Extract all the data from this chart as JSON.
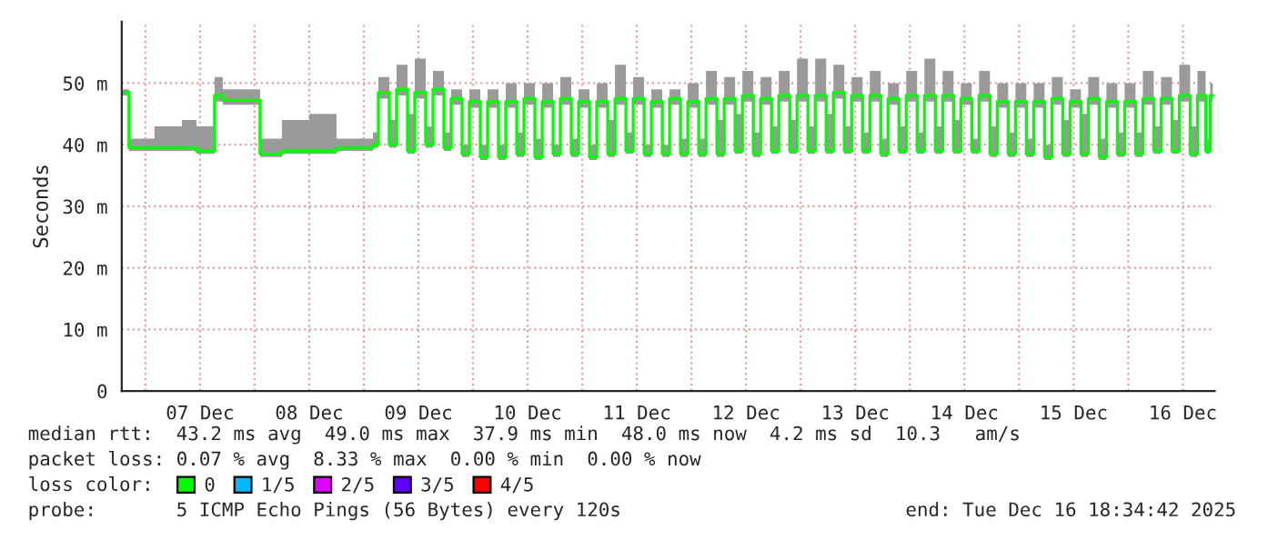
{
  "chart_data": {
    "type": "step",
    "ylabel": "Seconds",
    "xlim": [
      "2025-12-06T18:48",
      "2025-12-16T19:00"
    ],
    "ylim": [
      0,
      60
    ],
    "xticks": [
      {
        "value": "2025-12-07T00:00",
        "label": null
      },
      {
        "value": "2025-12-07T12:00",
        "label": "07 Dec"
      },
      {
        "value": "2025-12-08T00:00",
        "label": null
      },
      {
        "value": "2025-12-08T12:00",
        "label": "08 Dec"
      },
      {
        "value": "2025-12-09T00:00",
        "label": null
      },
      {
        "value": "2025-12-09T12:00",
        "label": "09 Dec"
      },
      {
        "value": "2025-12-10T00:00",
        "label": null
      },
      {
        "value": "2025-12-10T12:00",
        "label": "10 Dec"
      },
      {
        "value": "2025-12-11T00:00",
        "label": null
      },
      {
        "value": "2025-12-11T12:00",
        "label": "11 Dec"
      },
      {
        "value": "2025-12-12T00:00",
        "label": null
      },
      {
        "value": "2025-12-12T12:00",
        "label": "12 Dec"
      },
      {
        "value": "2025-12-13T00:00",
        "label": null
      },
      {
        "value": "2025-12-13T12:00",
        "label": "13 Dec"
      },
      {
        "value": "2025-12-14T00:00",
        "label": null
      },
      {
        "value": "2025-12-14T12:00",
        "label": "14 Dec"
      },
      {
        "value": "2025-12-15T00:00",
        "label": null
      },
      {
        "value": "2025-12-15T12:00",
        "label": "15 Dec"
      },
      {
        "value": "2025-12-16T00:00",
        "label": null
      },
      {
        "value": "2025-12-16T12:00",
        "label": "16 Dec"
      }
    ],
    "yticks": [
      0,
      {
        "value": 10,
        "label": "10 m"
      },
      {
        "value": 20,
        "label": "20 m"
      },
      {
        "value": 30,
        "label": "30 m"
      },
      {
        "value": 40,
        "label": "40 m"
      },
      {
        "value": 50,
        "label": "50 m"
      }
    ],
    "grid": true,
    "legend": "bottom",
    "legend_title": "loss color:",
    "annotations": [
      "median rtt:  43.2 ms avg  49.0 ms max  37.9 ms min  48.0 ms now  4.2 ms sd  10.3   am/s",
      "packet loss: 0.07 % avg  8.33 % max  0.00 % min  0.00 % now",
      "probe:       5 ICMP Echo Pings (56 Bytes) every 120s",
      "end: Tue Dec 16 18:34:42 2025"
    ],
    "series": [
      {
        "name": "0",
        "color": "#00ff00",
        "x": [
          "2025-12-06T18:48",
          "2025-12-06T20:24",
          "2025-12-07T02:00",
          "2025-12-07T08:00",
          "2025-12-07T11:12",
          "2025-12-07T15:12",
          "2025-12-07T17:00",
          "2025-12-08T01:12",
          "2025-12-08T06:00",
          "2025-12-08T12:00",
          "2025-12-08T18:00",
          "2025-12-09T02:00",
          "2025-12-09T03:12",
          "2025-12-09T05:36",
          "2025-12-09T07:12",
          "2025-12-09T09:36",
          "2025-12-09T11:12",
          "2025-12-09T13:36",
          "2025-12-09T15:12",
          "2025-12-09T17:36",
          "2025-12-09T19:12",
          "2025-12-09T21:36",
          "2025-12-09T23:12",
          "2025-12-10T01:36",
          "2025-12-10T03:12",
          "2025-12-10T05:36",
          "2025-12-10T07:12",
          "2025-12-10T09:36",
          "2025-12-10T11:12",
          "2025-12-10T13:36",
          "2025-12-10T15:12",
          "2025-12-10T17:36",
          "2025-12-10T19:12",
          "2025-12-10T21:36",
          "2025-12-10T23:12",
          "2025-12-11T01:36",
          "2025-12-11T03:12",
          "2025-12-11T05:36",
          "2025-12-11T07:12",
          "2025-12-11T09:36",
          "2025-12-11T11:12",
          "2025-12-11T13:36",
          "2025-12-11T15:12",
          "2025-12-11T17:36",
          "2025-12-11T19:12",
          "2025-12-11T21:36",
          "2025-12-11T23:12",
          "2025-12-12T01:36",
          "2025-12-12T03:12",
          "2025-12-12T05:36",
          "2025-12-12T07:12",
          "2025-12-12T09:36",
          "2025-12-12T11:12",
          "2025-12-12T13:36",
          "2025-12-12T15:12",
          "2025-12-12T17:36",
          "2025-12-12T19:12",
          "2025-12-12T21:36",
          "2025-12-12T23:12",
          "2025-12-13T01:36",
          "2025-12-13T03:12",
          "2025-12-13T05:36",
          "2025-12-13T07:12",
          "2025-12-13T09:36",
          "2025-12-13T11:12",
          "2025-12-13T13:36",
          "2025-12-13T15:12",
          "2025-12-13T17:36",
          "2025-12-13T19:12",
          "2025-12-13T21:36",
          "2025-12-13T23:12",
          "2025-12-14T01:36",
          "2025-12-14T03:12",
          "2025-12-14T05:36",
          "2025-12-14T07:12",
          "2025-12-14T09:36",
          "2025-12-14T11:12",
          "2025-12-14T13:36",
          "2025-12-14T15:12",
          "2025-12-14T17:36",
          "2025-12-14T19:12",
          "2025-12-14T21:36",
          "2025-12-14T23:12",
          "2025-12-15T01:36",
          "2025-12-15T03:12",
          "2025-12-15T05:36",
          "2025-12-15T07:12",
          "2025-12-15T09:36",
          "2025-12-15T11:12",
          "2025-12-15T13:36",
          "2025-12-15T15:12",
          "2025-12-15T17:36",
          "2025-12-15T19:12",
          "2025-12-15T21:36",
          "2025-12-15T23:12",
          "2025-12-16T01:36",
          "2025-12-16T03:12",
          "2025-12-16T05:36",
          "2025-12-16T07:12",
          "2025-12-16T09:36",
          "2025-12-16T11:12",
          "2025-12-16T13:36",
          "2025-12-16T15:12",
          "2025-12-16T17:00",
          "2025-12-16T18:00",
          "2025-12-16T18:34"
        ],
        "values": [
          48.5,
          39.5,
          39.5,
          39.5,
          39,
          48,
          47.2,
          38.5,
          39,
          39,
          39.5,
          40,
          48.5,
          40,
          49,
          39,
          48.5,
          40,
          49,
          39.5,
          47.5,
          38.5,
          47,
          38,
          47,
          38,
          47,
          38.5,
          47.5,
          38,
          47,
          38.5,
          47.5,
          38.5,
          47,
          38,
          47,
          38.5,
          47.5,
          39,
          47.5,
          38.5,
          47,
          38.5,
          47.5,
          38.5,
          47,
          38.5,
          47.5,
          38.5,
          47.5,
          39,
          48,
          38.5,
          47.5,
          39,
          48,
          39,
          48,
          39,
          48,
          39,
          48.5,
          39,
          48,
          39,
          48,
          38.5,
          47.5,
          39,
          48,
          39,
          48,
          39,
          48,
          39,
          47.5,
          39,
          48,
          38.5,
          47,
          38.5,
          47,
          38.5,
          47,
          38,
          47.5,
          38.5,
          47,
          38.5,
          47.5,
          38,
          47,
          38.5,
          47,
          38.5,
          47.5,
          39,
          47.5,
          39,
          48,
          38.5,
          48,
          39,
          48,
          48
        ],
        "lower": [
          48,
          39,
          39,
          39,
          38.5,
          47,
          46.5,
          38,
          38.5,
          38.5,
          39,
          39.5,
          47.5,
          39.5,
          48,
          38.5,
          47.5,
          39.5,
          48,
          39,
          46.5,
          38,
          46,
          37.5,
          46,
          37.5,
          46,
          38,
          46.5,
          37.5,
          46,
          38,
          46.5,
          38,
          46,
          37.5,
          46,
          38,
          46.5,
          38.5,
          46.5,
          38,
          46,
          38,
          46.5,
          38,
          46,
          38,
          46.5,
          38,
          46.5,
          38.5,
          47,
          38,
          46.5,
          38.5,
          47,
          38.5,
          47,
          38.5,
          47,
          38.5,
          47.5,
          38.5,
          47,
          38.5,
          47,
          38,
          46.5,
          38.5,
          47,
          38.5,
          47,
          38.5,
          47,
          38.5,
          46.5,
          38.5,
          47,
          38,
          46,
          38,
          46,
          38,
          46,
          37.5,
          46.5,
          38,
          46,
          38,
          46.5,
          37.5,
          46,
          38,
          46,
          38,
          46.5,
          38.5,
          46.5,
          38.5,
          47,
          38,
          47,
          38.5,
          47,
          47
        ],
        "upper": [
          49,
          41,
          43,
          44,
          43,
          51,
          49,
          41,
          44,
          45,
          41,
          42,
          51,
          44,
          53,
          45,
          54,
          43,
          52,
          42,
          49,
          40,
          49,
          40,
          49,
          40,
          50,
          42,
          50,
          41,
          50,
          40,
          51,
          41,
          49,
          40,
          50,
          44,
          53,
          42,
          51,
          40,
          49,
          40,
          49,
          41,
          50,
          41,
          52,
          44,
          51,
          45,
          52,
          42,
          51,
          43,
          52,
          44,
          54,
          43,
          54,
          45,
          53,
          43,
          51,
          42,
          52,
          41,
          50,
          43,
          52,
          42,
          54,
          43,
          52,
          44,
          50,
          41,
          52,
          43,
          50,
          42,
          50,
          41,
          50,
          40,
          51,
          44,
          49,
          45,
          51,
          41,
          50,
          42,
          50,
          42,
          52,
          43,
          51,
          44,
          53,
          43,
          52,
          41,
          50,
          50
        ]
      },
      {
        "name": "1/5",
        "color": "#00b8ff"
      },
      {
        "name": "2/5",
        "color": "#e000ff"
      },
      {
        "name": "3/5",
        "color": "#6000ff"
      },
      {
        "name": "4/5",
        "color": "#ff0000"
      }
    ]
  }
}
